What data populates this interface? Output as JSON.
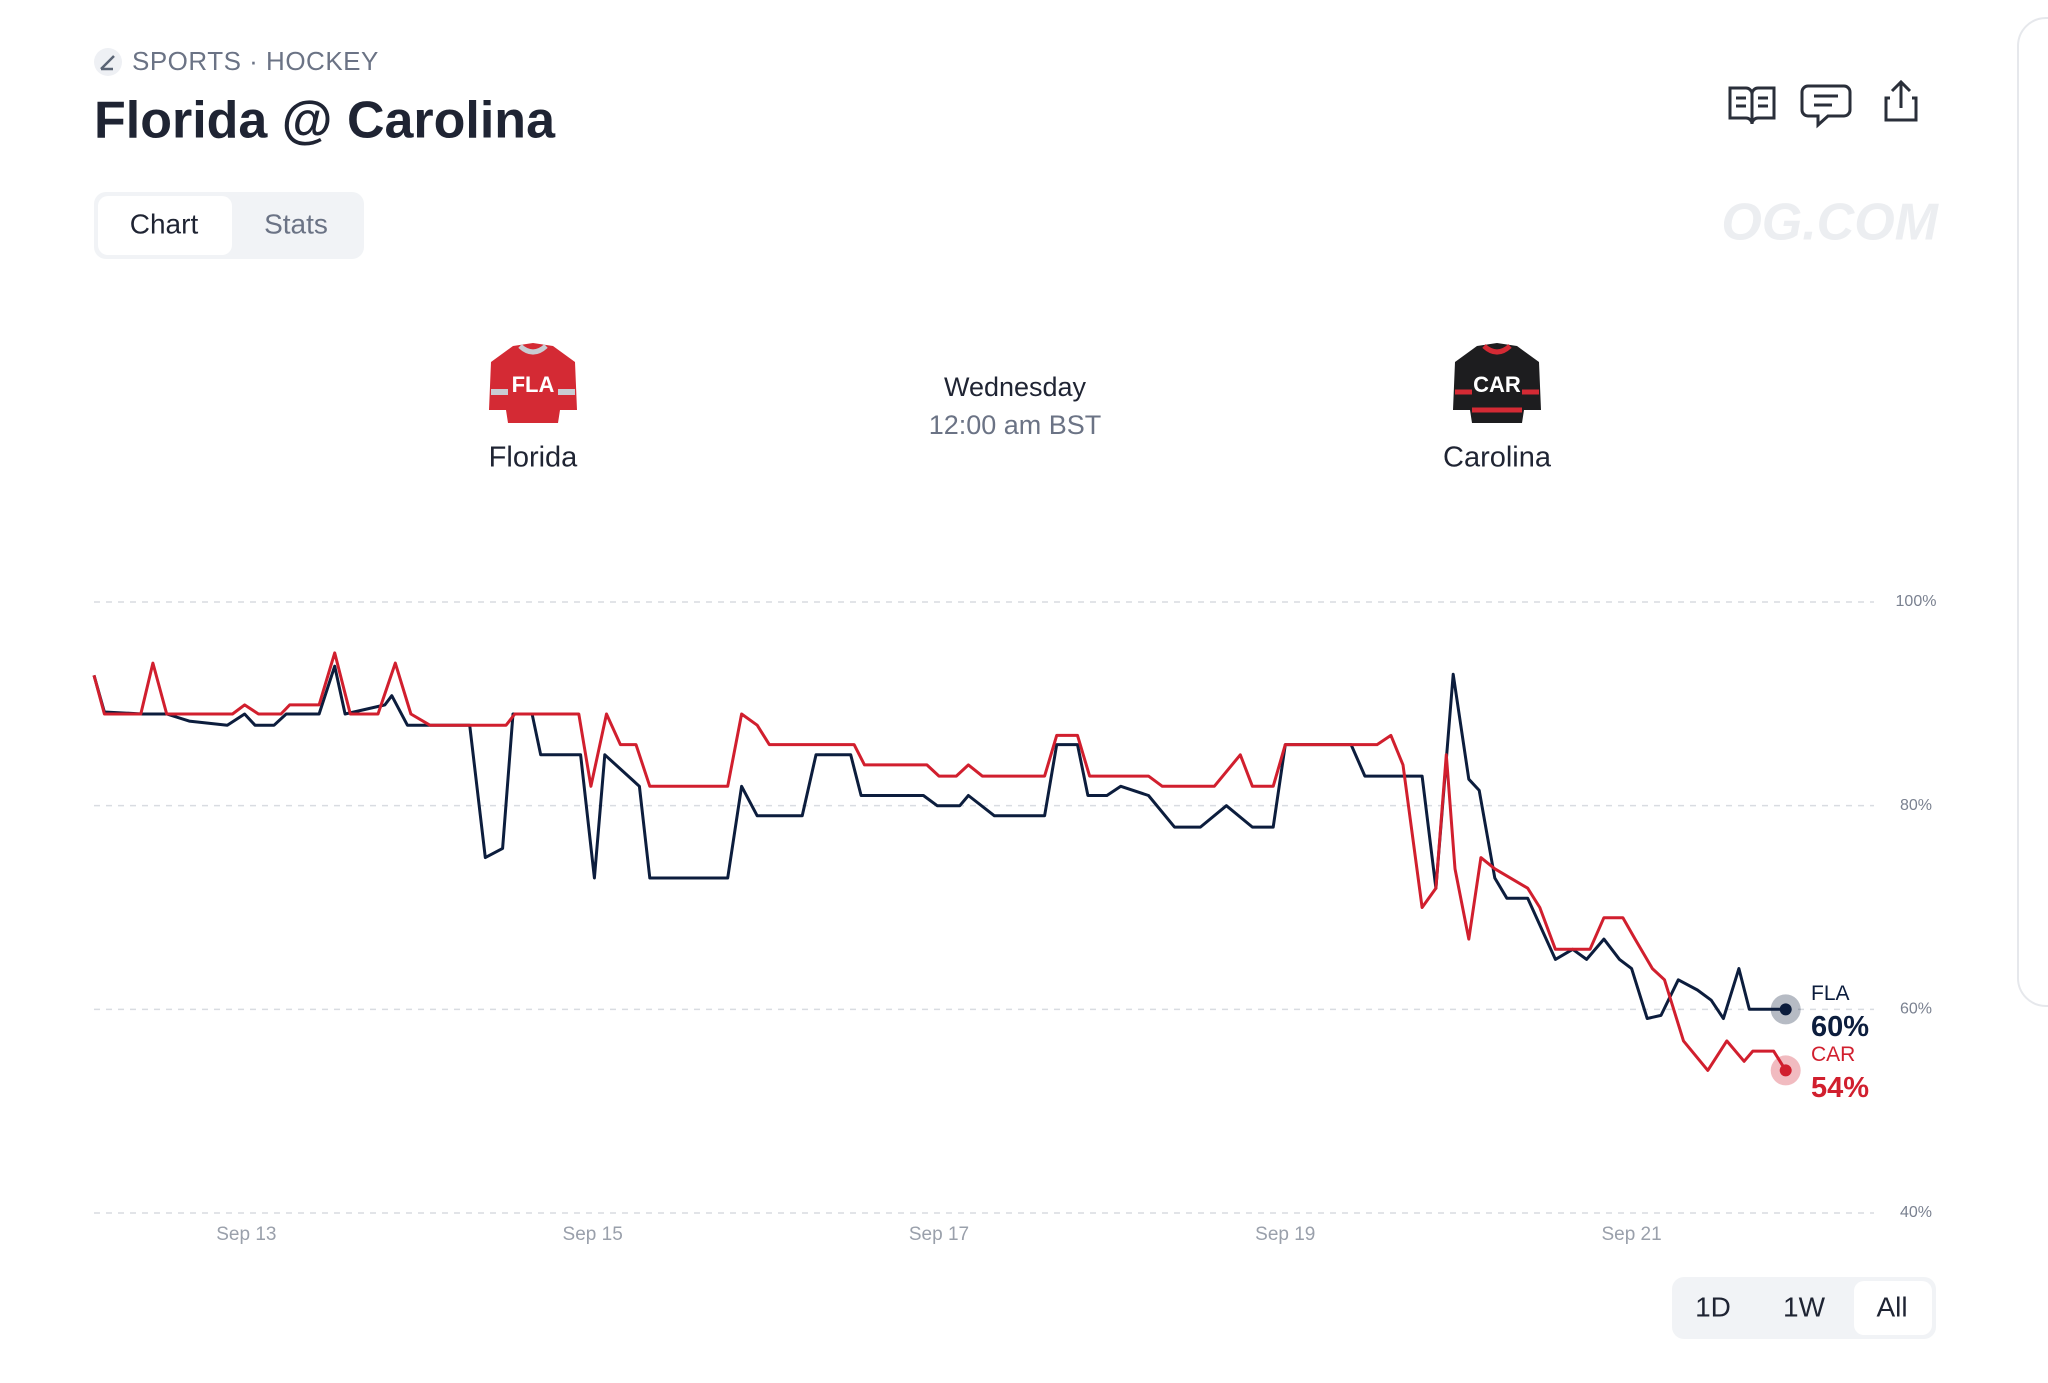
{
  "header": {
    "category": "SPORTS · HOCKEY",
    "title": "Florida @ Carolina",
    "watermark": "OG.COM"
  },
  "tabs": [
    "Chart",
    "Stats"
  ],
  "matchup": {
    "teams": [
      {
        "jersey": "FLA",
        "name": "Florida"
      },
      {
        "jersey": "CAR",
        "name": "Carolina"
      }
    ],
    "day": "Wednesday",
    "time": "12:00 am BST"
  },
  "ranges": [
    "1D",
    "1W",
    "All"
  ],
  "chart_data": {
    "type": "line",
    "xlim": [
      12.12,
      22.4
    ],
    "xticks": [
      {
        "value": 13,
        "label": "Sep 13"
      },
      {
        "value": 15,
        "label": "Sep 15"
      },
      {
        "value": 17,
        "label": "Sep 17"
      },
      {
        "value": 19,
        "label": "Sep 19"
      },
      {
        "value": 21,
        "label": "Sep 21"
      }
    ],
    "ylim": [
      40,
      100
    ],
    "yticks": [
      {
        "value": 40,
        "label": "40%"
      },
      {
        "value": 60,
        "label": "60%"
      },
      {
        "value": 80,
        "label": "80%"
      },
      {
        "value": 100,
        "label": "100%"
      }
    ],
    "grid": true,
    "series": [
      {
        "name": "FLA",
        "color": "#0c1d3d",
        "last_value_label": "60%",
        "x": [
          12.12,
          12.18,
          12.4,
          12.54,
          12.67,
          12.89,
          12.99,
          13.05,
          13.16,
          13.23,
          13.42,
          13.51,
          13.57,
          13.8,
          13.84,
          13.93,
          14.29,
          14.38,
          14.48,
          14.54,
          14.65,
          14.7,
          14.93,
          15.01,
          15.07,
          15.27,
          15.33,
          15.78,
          15.86,
          15.95,
          16.21,
          16.29,
          16.49,
          16.55,
          16.91,
          16.99,
          17.12,
          17.17,
          17.32,
          17.61,
          17.68,
          17.8,
          17.86,
          17.97,
          18.05,
          18.21,
          18.36,
          18.51,
          18.66,
          18.81,
          18.93,
          19.0,
          19.38,
          19.46,
          19.79,
          19.87,
          19.97,
          20.06,
          20.12,
          20.21,
          20.28,
          20.4,
          20.56,
          20.66,
          20.74,
          20.84,
          20.93,
          21.0,
          21.09,
          21.17,
          21.27,
          21.38,
          21.46,
          21.53,
          21.62,
          21.68,
          21.89
        ],
        "values": [
          92.8,
          89.2,
          89,
          89,
          88.3,
          87.9,
          89,
          87.9,
          87.9,
          89,
          89,
          93.7,
          89,
          89.9,
          90.8,
          87.9,
          87.9,
          74.9,
          75.8,
          89,
          89,
          85,
          85,
          72.9,
          85,
          81.9,
          72.9,
          72.9,
          81.9,
          79,
          79,
          85,
          85,
          81,
          81,
          80,
          80,
          81,
          79,
          79,
          86,
          86,
          81,
          81,
          81.9,
          81,
          77.9,
          77.9,
          80,
          77.9,
          77.9,
          86,
          86,
          82.9,
          82.9,
          71.9,
          92.9,
          82.6,
          81.5,
          72.9,
          70.9,
          70.9,
          64.9,
          65.9,
          64.9,
          66.9,
          64.9,
          64,
          59.1,
          59.4,
          62.9,
          61.9,
          60.9,
          59.1,
          64,
          60,
          60
        ]
      },
      {
        "name": "CAR",
        "color": "#d11f2e",
        "last_value_label": "54%",
        "x": [
          12.12,
          12.18,
          12.39,
          12.46,
          12.54,
          12.92,
          12.99,
          13.07,
          13.2,
          13.25,
          13.42,
          13.51,
          13.6,
          13.76,
          13.86,
          13.95,
          14.06,
          14.5,
          14.55,
          14.92,
          14.99,
          15.08,
          15.16,
          15.25,
          15.33,
          15.78,
          15.86,
          15.95,
          16.02,
          16.51,
          16.57,
          16.93,
          17.0,
          17.1,
          17.17,
          17.25,
          17.61,
          17.68,
          17.8,
          17.87,
          18.21,
          18.29,
          18.59,
          18.74,
          18.81,
          18.93,
          19.0,
          19.53,
          19.61,
          19.68,
          19.79,
          19.87,
          19.93,
          19.98,
          20.06,
          20.13,
          20.21,
          20.4,
          20.47,
          20.56,
          20.76,
          20.84,
          20.95,
          21.02,
          21.12,
          21.19,
          21.3,
          21.44,
          21.55,
          21.65,
          21.7,
          21.82,
          21.89
        ],
        "values": [
          92.8,
          89,
          89,
          94,
          89,
          89,
          89.9,
          89,
          89,
          89.9,
          89.9,
          95,
          89,
          89,
          94,
          89,
          87.9,
          87.9,
          89,
          89,
          81.9,
          89,
          86,
          86,
          81.9,
          81.9,
          89,
          87.9,
          86,
          86,
          84,
          84,
          82.9,
          82.9,
          84,
          82.9,
          82.9,
          86.9,
          86.9,
          82.9,
          82.9,
          81.9,
          81.9,
          85,
          81.9,
          81.9,
          86,
          86,
          86.9,
          84,
          70,
          71.9,
          85,
          73.8,
          66.9,
          74.9,
          73.8,
          71.9,
          70,
          65.9,
          65.9,
          69,
          69,
          66.9,
          64,
          62.9,
          56.9,
          54,
          56.9,
          54.9,
          55.9,
          55.9,
          54
        ]
      }
    ]
  }
}
